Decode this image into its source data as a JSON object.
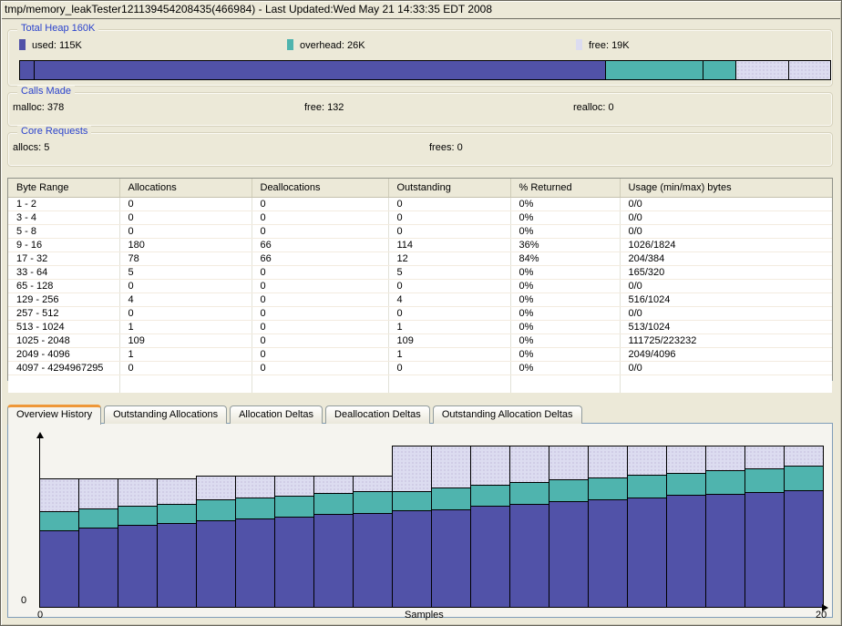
{
  "window": {
    "title": "tmp/memory_leakTester121139454208435(466984)  - Last Updated:Wed May 21 14:33:35 EDT 2008"
  },
  "colors": {
    "used": "#5152a8",
    "overhead": "#4fb4ae",
    "free": "#dcdcf0",
    "tab_accent": "#ee9738"
  },
  "total_heap": {
    "title": "Total Heap 160K",
    "legend": [
      {
        "key": "used",
        "label": "used:  115K"
      },
      {
        "key": "overhead",
        "label": "overhead:  26K"
      },
      {
        "key": "free",
        "label": "free:  19K"
      }
    ],
    "bar_segments": [
      {
        "key": "used",
        "pct": 1.79
      },
      {
        "key": "used",
        "pct": 70.55
      },
      {
        "key": "overhead",
        "pct": 11.98
      },
      {
        "key": "overhead",
        "pct": 4.14
      },
      {
        "key": "free",
        "pct": 6.5
      },
      {
        "key": "free",
        "pct": 5.04
      }
    ]
  },
  "calls_made": {
    "title": "Calls Made",
    "items": [
      "malloc:  378",
      "free:  132",
      "realloc:  0"
    ]
  },
  "core_requests": {
    "title": "Core Requests",
    "items": [
      "allocs:  5",
      "frees:  0"
    ]
  },
  "table": {
    "columns": [
      "Byte Range",
      "Allocations",
      "Deallocations",
      "Outstanding",
      "% Returned",
      "Usage (min/max) bytes"
    ],
    "rows": [
      [
        "1 - 2",
        "0",
        "0",
        "0",
        "0%",
        "0/0"
      ],
      [
        "3 - 4",
        "0",
        "0",
        "0",
        "0%",
        "0/0"
      ],
      [
        "5 - 8",
        "0",
        "0",
        "0",
        "0%",
        "0/0"
      ],
      [
        "9 - 16",
        "180",
        "66",
        "114",
        "36%",
        "1026/1824"
      ],
      [
        "17 - 32",
        "78",
        "66",
        "12",
        "84%",
        "204/384"
      ],
      [
        "33 - 64",
        "5",
        "0",
        "5",
        "0%",
        "165/320"
      ],
      [
        "65 - 128",
        "0",
        "0",
        "0",
        "0%",
        "0/0"
      ],
      [
        "129 - 256",
        "4",
        "0",
        "4",
        "0%",
        "516/1024"
      ],
      [
        "257 - 512",
        "0",
        "0",
        "0",
        "0%",
        "0/0"
      ],
      [
        "513 - 1024",
        "1",
        "0",
        "1",
        "0%",
        "513/1024"
      ],
      [
        "1025 - 2048",
        "109",
        "0",
        "109",
        "0%",
        "111725/223232"
      ],
      [
        "2049 - 4096",
        "1",
        "0",
        "1",
        "0%",
        "2049/4096"
      ],
      [
        "4097 - 4294967295",
        "0",
        "0",
        "0",
        "0%",
        "0/0"
      ]
    ]
  },
  "tabs": [
    {
      "label": "Overview History",
      "active": true
    },
    {
      "label": "Outstanding Allocations",
      "active": false
    },
    {
      "label": "Allocation Deltas",
      "active": false
    },
    {
      "label": "Deallocation Deltas",
      "active": false
    },
    {
      "label": "Outstanding Allocation Deltas",
      "active": false
    }
  ],
  "chart_data": {
    "type": "bar",
    "stacked": true,
    "title": "Overview History",
    "xlabel": "Samples",
    "x_ticks": [
      "0",
      "20"
    ],
    "y_origin_label": "0",
    "units": "KB",
    "x_range": [
      0,
      20
    ],
    "ylim": [
      0,
      160
    ],
    "legend_position": "none",
    "grid": false,
    "series": [
      {
        "name": "used",
        "color_key": "used",
        "values": [
          75.6,
          78.2,
          80.9,
          82.7,
          85.3,
          87.1,
          88.9,
          91.6,
          92.4,
          95.1,
          96.0,
          99.6,
          101.3,
          104.0,
          105.8,
          107.6,
          110.2,
          111.1,
          112.9,
          114.7
        ]
      },
      {
        "name": "overhead",
        "color_key": "overhead",
        "values": [
          19.6,
          19.6,
          19.6,
          19.6,
          21.3,
          21.3,
          21.3,
          21.3,
          22.2,
          19.6,
          22.2,
          21.3,
          22.2,
          22.2,
          22.2,
          23.1,
          22.2,
          24.0,
          24.0,
          24.9
        ]
      },
      {
        "name": "free",
        "color_key": "free",
        "values": [
          32.9,
          30.2,
          27.6,
          25.8,
          24.0,
          22.2,
          20.4,
          17.8,
          16.0,
          45.3,
          41.8,
          39.1,
          36.4,
          33.8,
          32.0,
          29.3,
          27.6,
          24.9,
          23.1,
          20.4
        ]
      }
    ]
  }
}
